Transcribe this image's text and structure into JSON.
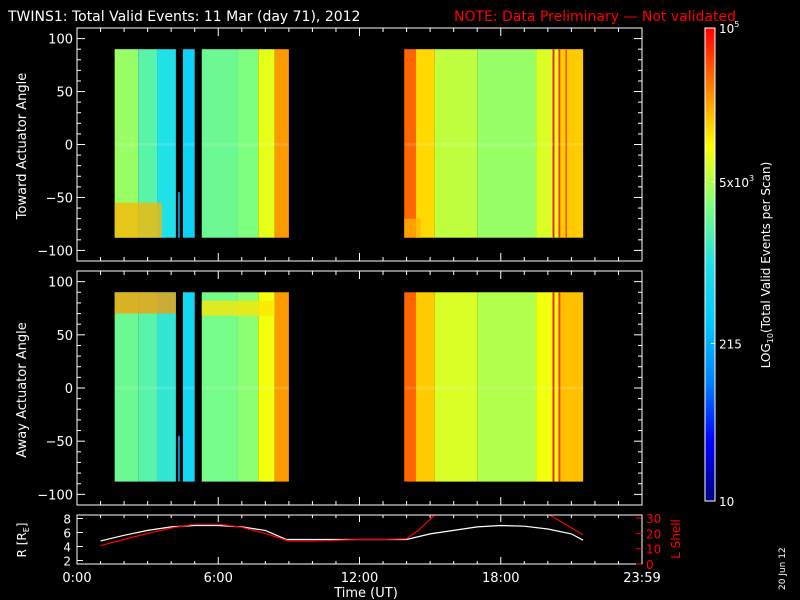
{
  "title": {
    "main": "TWINS1: Total Valid Events: 11 Mar (day  71), 2012",
    "note": "NOTE: Data Preliminary — Not validated"
  },
  "stamp": "20 Jun 12",
  "colors": {
    "background": "#000000",
    "foreground": "#ffffff",
    "note": "#ff0000",
    "l_shell": "#ff0000",
    "r_line": "#ffffff"
  },
  "colorbar": {
    "label_pre": "LOG",
    "label_sub": "10",
    "label_post": "(Total Valid  Events per Scan)",
    "scale": "log",
    "range": [
      10,
      100000
    ],
    "ticks": [
      {
        "value": 10,
        "label": "10",
        "sup": ""
      },
      {
        "value": 215,
        "label": "215",
        "sup": ""
      },
      {
        "value": 5000,
        "label": "5x10",
        "sup": "3"
      },
      {
        "value": 100000,
        "label": "10",
        "sup": "5"
      }
    ],
    "colorscale": [
      "#00007f",
      "#0000ff",
      "#0080ff",
      "#00c8ff",
      "#20e0e8",
      "#7fff7f",
      "#ffff00",
      "#ff8000",
      "#ff0000"
    ]
  },
  "chart_data": [
    {
      "type": "heatmap",
      "ylabel": "Toward Actuator Angle",
      "xlim": [
        0,
        24
      ],
      "ylim": [
        -110,
        110
      ],
      "yticks": [
        -100,
        -50,
        0,
        50,
        100
      ],
      "ytick_labels": [
        "−100",
        "−50",
        "0",
        "50",
        "100"
      ],
      "angle_range": [
        -88,
        90
      ],
      "data_intervals": [
        [
          1.6,
          4.2
        ],
        [
          4.5,
          5.0
        ],
        [
          5.3,
          9.0
        ],
        [
          13.9,
          21.5
        ]
      ],
      "blocks": [
        {
          "x": [
            1.6,
            2.6
          ],
          "log_value": 3.6
        },
        {
          "x": [
            2.6,
            3.4
          ],
          "log_value": 3.3
        },
        {
          "x": [
            3.4,
            4.2
          ],
          "log_value": 3.0
        },
        {
          "x": [
            4.5,
            5.0
          ],
          "log_value": 2.7
        },
        {
          "x": [
            5.3,
            6.8
          ],
          "log_value": 3.4
        },
        {
          "x": [
            6.8,
            7.7
          ],
          "log_value": 3.5
        },
        {
          "x": [
            7.7,
            8.4
          ],
          "log_value": 3.9
        },
        {
          "x": [
            8.4,
            9.0
          ],
          "log_value": 4.4
        },
        {
          "x": [
            13.9,
            14.4
          ],
          "log_value": 4.6
        },
        {
          "x": [
            14.4,
            15.2
          ],
          "log_value": 4.15
        },
        {
          "x": [
            15.2,
            17.0
          ],
          "log_value": 3.75
        },
        {
          "x": [
            17.0,
            19.5
          ],
          "log_value": 3.6
        },
        {
          "x": [
            19.5,
            20.5
          ],
          "log_value": 3.85
        },
        {
          "x": [
            20.5,
            21.5
          ],
          "log_value": 4.2
        }
      ],
      "streaks": [
        {
          "x": 20.2,
          "width": 0.08,
          "log_value": 4.9
        },
        {
          "x": 20.45,
          "width": 0.08,
          "log_value": 4.8
        },
        {
          "x": 20.75,
          "width": 0.06,
          "log_value": 4.7
        },
        {
          "x": 4.3,
          "width": 0.06,
          "log_value": 2.4,
          "y": [
            -88,
            -45
          ]
        }
      ],
      "enhancements": [
        {
          "x": [
            1.6,
            3.6
          ],
          "y": [
            -88,
            -55
          ],
          "log_value": 4.3
        },
        {
          "x": [
            13.9,
            14.6
          ],
          "y": [
            -88,
            -70
          ],
          "log_value": 4.3
        }
      ]
    },
    {
      "type": "heatmap",
      "ylabel": "Away Actuator Angle",
      "xlim": [
        0,
        24
      ],
      "ylim": [
        -110,
        110
      ],
      "yticks": [
        -100,
        -50,
        0,
        50,
        100
      ],
      "ytick_labels": [
        "−100",
        "−50",
        "0",
        "50",
        "100"
      ],
      "angle_range": [
        -88,
        90
      ],
      "data_intervals": [
        [
          1.6,
          4.2
        ],
        [
          4.5,
          5.0
        ],
        [
          5.3,
          9.0
        ],
        [
          13.9,
          21.5
        ]
      ],
      "blocks": [
        {
          "x": [
            1.6,
            2.6
          ],
          "log_value": 3.4
        },
        {
          "x": [
            2.6,
            3.4
          ],
          "log_value": 3.3
        },
        {
          "x": [
            3.4,
            4.2
          ],
          "log_value": 3.1
        },
        {
          "x": [
            4.5,
            5.0
          ],
          "log_value": 2.8
        },
        {
          "x": [
            5.3,
            6.8
          ],
          "log_value": 3.45
        },
        {
          "x": [
            6.8,
            7.7
          ],
          "log_value": 3.55
        },
        {
          "x": [
            7.7,
            8.4
          ],
          "log_value": 3.95
        },
        {
          "x": [
            8.4,
            9.0
          ],
          "log_value": 4.4
        },
        {
          "x": [
            13.9,
            14.4
          ],
          "log_value": 4.6
        },
        {
          "x": [
            14.4,
            15.2
          ],
          "log_value": 4.2
        },
        {
          "x": [
            15.2,
            17.0
          ],
          "log_value": 3.85
        },
        {
          "x": [
            17.0,
            19.5
          ],
          "log_value": 3.7
        },
        {
          "x": [
            19.5,
            20.5
          ],
          "log_value": 3.95
        },
        {
          "x": [
            20.5,
            21.5
          ],
          "log_value": 4.25
        }
      ],
      "streaks": [
        {
          "x": 20.2,
          "width": 0.08,
          "log_value": 4.9
        },
        {
          "x": 20.45,
          "width": 0.08,
          "log_value": 4.8
        },
        {
          "x": 4.3,
          "width": 0.06,
          "log_value": 2.4,
          "y": [
            -88,
            -45
          ]
        }
      ],
      "enhancements": [
        {
          "x": [
            1.6,
            4.2
          ],
          "y": [
            70,
            90
          ],
          "log_value": 4.4
        },
        {
          "x": [
            5.3,
            8.4
          ],
          "y": [
            68,
            82
          ],
          "log_value": 4.1
        }
      ]
    },
    {
      "type": "line",
      "xlabel": "Time (UT)",
      "xlim": [
        0,
        24
      ],
      "xticks": [
        0,
        6,
        12,
        18,
        24
      ],
      "xtick_labels": [
        "0:00",
        "6:00",
        "12:00",
        "18:00",
        "23:59"
      ],
      "left_axis": {
        "label_pre": "R [R",
        "label_sub": "E",
        "label_post": "]",
        "ylim": [
          1.5,
          8.5
        ],
        "yticks": [
          2,
          4,
          6,
          8
        ],
        "ytick_labels": [
          "2",
          "4",
          "6",
          "8"
        ]
      },
      "right_axis": {
        "label": "L Shell",
        "ylim": [
          0,
          32
        ],
        "yticks": [
          0,
          10,
          20,
          30
        ],
        "ytick_labels": [
          "0",
          "10",
          "20",
          "30"
        ]
      },
      "series": [
        {
          "axis": "left",
          "x": [
            1,
            2,
            3,
            4,
            5,
            6,
            7,
            8,
            8.9,
            10,
            11,
            12,
            13,
            14,
            15,
            16,
            17,
            18,
            19,
            20,
            21,
            21.5
          ],
          "y": [
            4.8,
            5.6,
            6.3,
            6.8,
            7.0,
            7.0,
            6.8,
            6.3,
            5.0,
            5.0,
            5.0,
            5.0,
            5.0,
            5.0,
            5.8,
            6.3,
            6.8,
            7.0,
            6.9,
            6.5,
            5.8,
            4.9
          ]
        },
        {
          "axis": "right",
          "x": [
            1,
            2,
            3,
            4,
            5,
            6,
            7,
            8,
            9,
            10,
            11,
            12,
            13,
            14,
            14.5,
            15.2,
            15.6,
            19.8,
            20.2,
            21.5
          ],
          "y": [
            12,
            16,
            20,
            23.5,
            26,
            26,
            24,
            20,
            15,
            15,
            15.5,
            16,
            16,
            16.5,
            22,
            32,
            34,
            34,
            31,
            19
          ]
        }
      ]
    }
  ]
}
